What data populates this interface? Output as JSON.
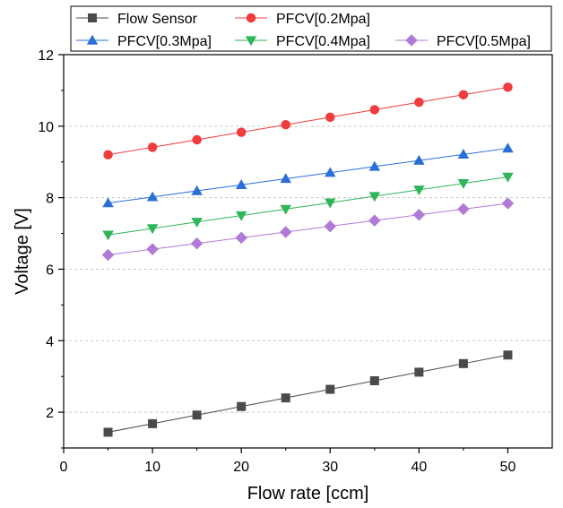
{
  "chart_data": {
    "type": "line",
    "xlabel": "Flow rate [ccm]",
    "ylabel": "Voltage [V]",
    "xlim": [
      0,
      55
    ],
    "ylim": [
      1,
      12
    ],
    "x_ticks": [
      0,
      10,
      20,
      30,
      40,
      50
    ],
    "y_ticks": [
      2,
      4,
      6,
      8,
      10,
      12
    ],
    "grid": "horizontal dashed",
    "legend_placement": "top",
    "x": [
      5,
      10,
      15,
      20,
      25,
      30,
      35,
      40,
      45,
      50
    ],
    "series": [
      {
        "name": "Flow Sensor",
        "marker": "square",
        "color": "#4a4a4a",
        "values": [
          1.44,
          1.68,
          1.92,
          2.16,
          2.4,
          2.64,
          2.88,
          3.12,
          3.36,
          3.6
        ]
      },
      {
        "name": "PFCV[0.2Mpa]",
        "marker": "circle",
        "color": "#f03c3c",
        "values": [
          9.2,
          9.41,
          9.62,
          9.83,
          10.04,
          10.25,
          10.46,
          10.67,
          10.88,
          11.09
        ]
      },
      {
        "name": "PFCV[0.3Mpa]",
        "marker": "triangle-up",
        "color": "#2a6fd6",
        "values": [
          7.85,
          8.02,
          8.19,
          8.36,
          8.53,
          8.7,
          8.87,
          9.04,
          9.21,
          9.38
        ]
      },
      {
        "name": "PFCV[0.4Mpa]",
        "marker": "triangle-down",
        "color": "#2fb55a",
        "values": [
          6.96,
          7.14,
          7.32,
          7.5,
          7.68,
          7.86,
          8.04,
          8.22,
          8.4,
          8.58
        ]
      },
      {
        "name": "PFCV[0.5Mpa]",
        "marker": "diamond",
        "color": "#b07ad6",
        "values": [
          6.4,
          6.56,
          6.72,
          6.88,
          7.04,
          7.2,
          7.36,
          7.52,
          7.68,
          7.84
        ]
      }
    ]
  }
}
